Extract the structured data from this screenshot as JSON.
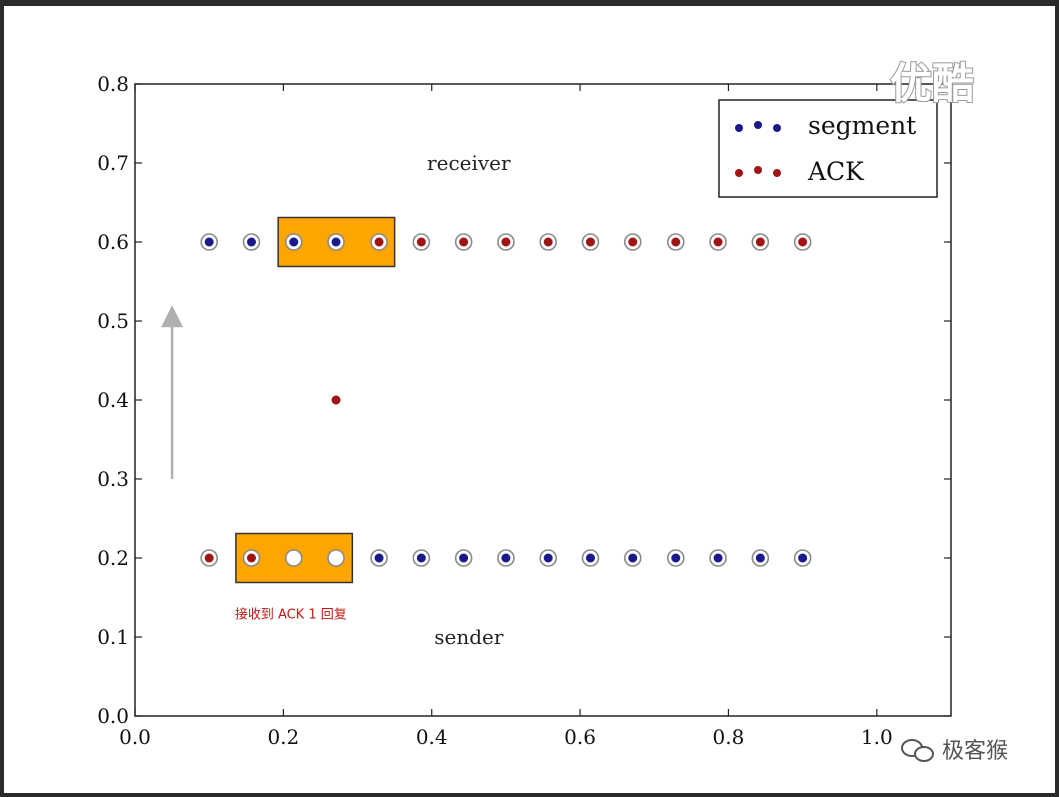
{
  "chart_data": {
    "type": "scatter",
    "xlim": [
      0.0,
      1.1
    ],
    "ylim": [
      0.0,
      0.8
    ],
    "x_ticks": [
      "0.0",
      "0.2",
      "0.4",
      "0.6",
      "0.8",
      "1.0"
    ],
    "y_ticks": [
      "0.0",
      "0.1",
      "0.2",
      "0.3",
      "0.4",
      "0.5",
      "0.6",
      "0.7",
      "0.8"
    ],
    "grid": false,
    "legend_position": "top-right",
    "legend": [
      {
        "label": "segment",
        "color": "#1a1a8c"
      },
      {
        "label": "ACK",
        "color": "#a01414"
      }
    ],
    "rows": [
      {
        "y": 0.6,
        "points": [
          {
            "x": 0.1,
            "kind": "segment"
          },
          {
            "x": 0.157,
            "kind": "segment"
          },
          {
            "x": 0.214,
            "kind": "segment"
          },
          {
            "x": 0.271,
            "kind": "segment"
          },
          {
            "x": 0.329,
            "kind": "ack"
          },
          {
            "x": 0.386,
            "kind": "ack"
          },
          {
            "x": 0.443,
            "kind": "ack"
          },
          {
            "x": 0.5,
            "kind": "ack"
          },
          {
            "x": 0.557,
            "kind": "ack"
          },
          {
            "x": 0.614,
            "kind": "ack"
          },
          {
            "x": 0.671,
            "kind": "ack"
          },
          {
            "x": 0.729,
            "kind": "ack"
          },
          {
            "x": 0.786,
            "kind": "ack"
          },
          {
            "x": 0.843,
            "kind": "ack"
          },
          {
            "x": 0.9,
            "kind": "ack"
          }
        ]
      },
      {
        "y": 0.2,
        "points": [
          {
            "x": 0.1,
            "kind": "ack"
          },
          {
            "x": 0.157,
            "kind": "ack"
          },
          {
            "x": 0.214,
            "kind": "empty"
          },
          {
            "x": 0.271,
            "kind": "empty"
          },
          {
            "x": 0.329,
            "kind": "segment"
          },
          {
            "x": 0.386,
            "kind": "segment"
          },
          {
            "x": 0.443,
            "kind": "segment"
          },
          {
            "x": 0.5,
            "kind": "segment"
          },
          {
            "x": 0.557,
            "kind": "segment"
          },
          {
            "x": 0.614,
            "kind": "segment"
          },
          {
            "x": 0.671,
            "kind": "segment"
          },
          {
            "x": 0.729,
            "kind": "segment"
          },
          {
            "x": 0.786,
            "kind": "segment"
          },
          {
            "x": 0.843,
            "kind": "segment"
          },
          {
            "x": 0.9,
            "kind": "segment"
          }
        ]
      }
    ],
    "moving_points": [
      {
        "x": 0.271,
        "y": 0.4,
        "kind": "ack"
      }
    ],
    "windows": [
      {
        "row_y": 0.6,
        "x_start": 0.193,
        "x_end": 0.35,
        "color": "#ffa500"
      },
      {
        "row_y": 0.2,
        "x_start": 0.136,
        "x_end": 0.293,
        "color": "#ffa500"
      }
    ],
    "arrow": {
      "x": 0.05,
      "y_from": 0.3,
      "y_to": 0.52,
      "color": "#b0b0b0"
    },
    "annotations": [
      {
        "text": "receiver",
        "x": 0.45,
        "y": 0.7
      },
      {
        "text": "sender",
        "x": 0.45,
        "y": 0.1
      }
    ],
    "note": {
      "text": "接收到 ACK 1 回复",
      "x": 0.21,
      "y": 0.13
    },
    "colors": {
      "segment": "#1a1a8c",
      "ack": "#a01414",
      "ring": "#8a8a8a",
      "window": "#ffa500"
    }
  },
  "watermarks": {
    "top_right": "优酷",
    "bottom_right": "极客猴"
  }
}
